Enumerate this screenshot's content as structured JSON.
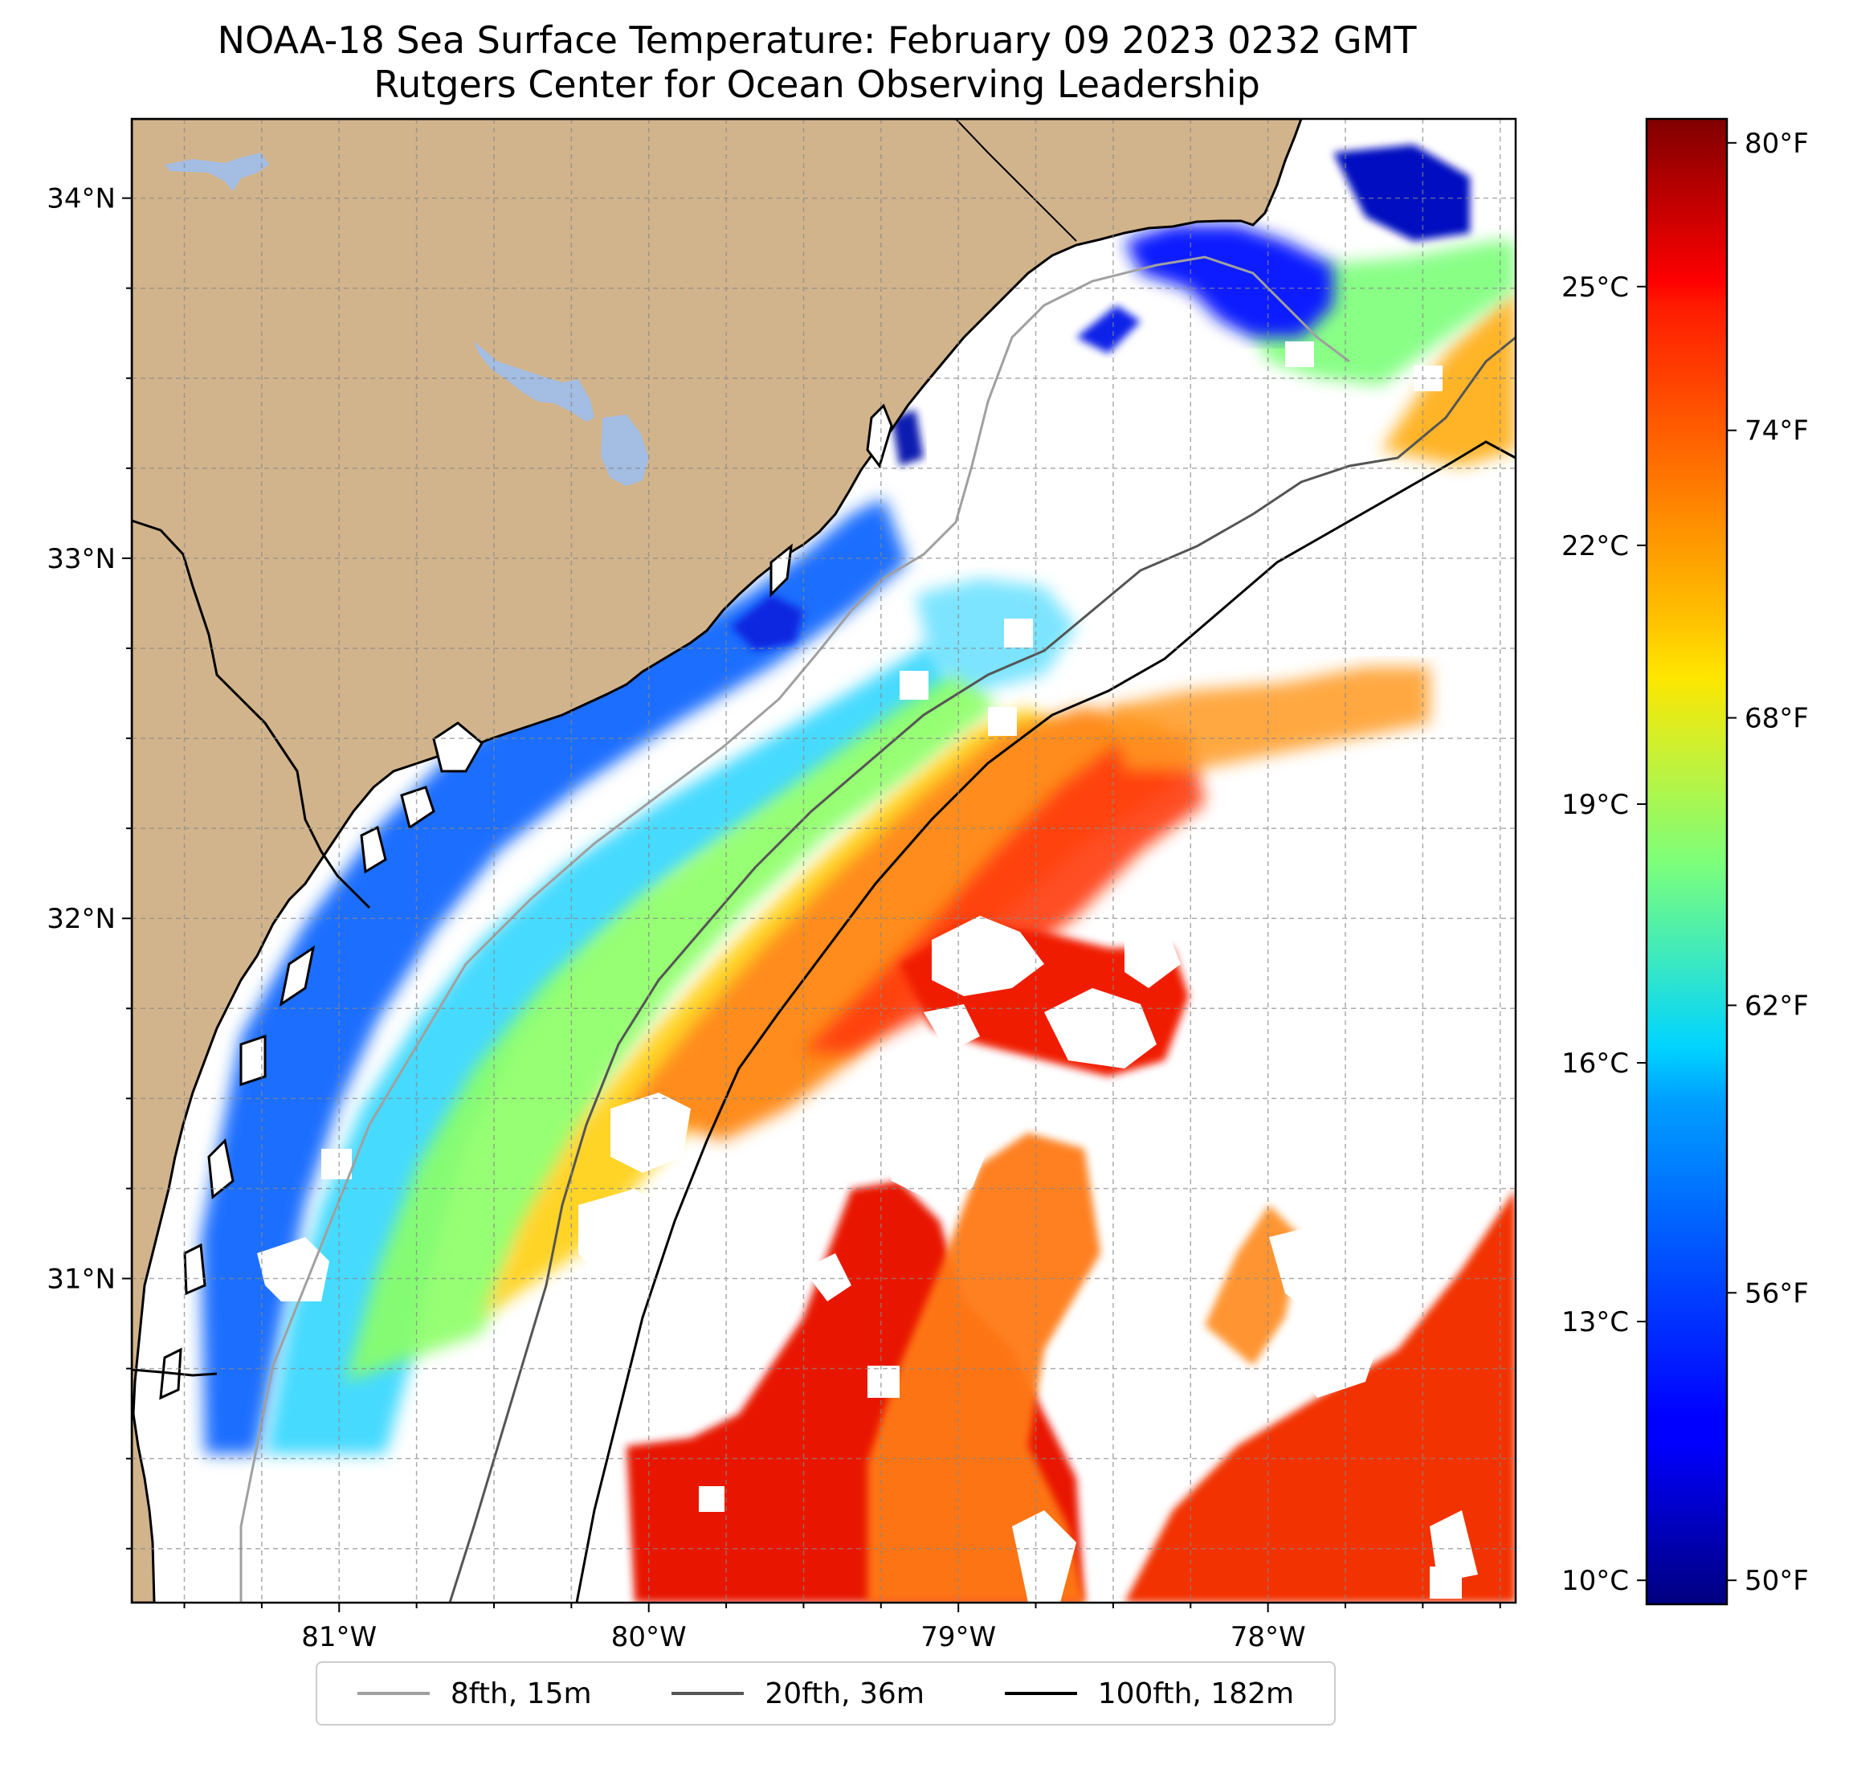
{
  "title": {
    "line1": "NOAA-18 Sea Surface Temperature: February 09 2023 0232 GMT",
    "line2": "Rutgers Center for Ocean Observing Leadership"
  },
  "map": {
    "lon_range": [
      -81.67,
      -77.2
    ],
    "lat_range": [
      30.1,
      34.22
    ],
    "lon_ticks": [
      {
        "value": -81,
        "label": "81°W"
      },
      {
        "value": -80,
        "label": "80°W"
      },
      {
        "value": -79,
        "label": "79°W"
      },
      {
        "value": -78,
        "label": "78°W"
      }
    ],
    "lat_ticks": [
      {
        "value": 34,
        "label": "34°N"
      },
      {
        "value": 33,
        "label": "33°N"
      },
      {
        "value": 32,
        "label": "32°N"
      },
      {
        "value": 31,
        "label": "31°N"
      }
    ],
    "land_color": "#d2b48c",
    "lake_color": "#a3bde3",
    "no_data_color": "#ffffff"
  },
  "colorbar": {
    "celsius_ticks": [
      {
        "value": 25,
        "label": "25°C"
      },
      {
        "value": 22,
        "label": "22°C"
      },
      {
        "value": 19,
        "label": "19°C"
      },
      {
        "value": 16,
        "label": "16°C"
      },
      {
        "value": 13,
        "label": "13°C"
      },
      {
        "value": 10,
        "label": "10°C"
      }
    ],
    "fahrenheit_ticks": [
      {
        "value": 80,
        "label": "80°F"
      },
      {
        "value": 74,
        "label": "74°F"
      },
      {
        "value": 68,
        "label": "68°F"
      },
      {
        "value": 62,
        "label": "62°F"
      },
      {
        "value": 56,
        "label": "56°F"
      },
      {
        "value": 50,
        "label": "50°F"
      }
    ],
    "range_f": [
      49.5,
      80.5
    ],
    "colormap": "jet"
  },
  "legend": {
    "items": [
      {
        "label": "8fth, 15m",
        "color": "#a0a0a0"
      },
      {
        "label": "20fth, 36m",
        "color": "#555555"
      },
      {
        "label": "100fth, 182m",
        "color": "#000000"
      }
    ]
  }
}
